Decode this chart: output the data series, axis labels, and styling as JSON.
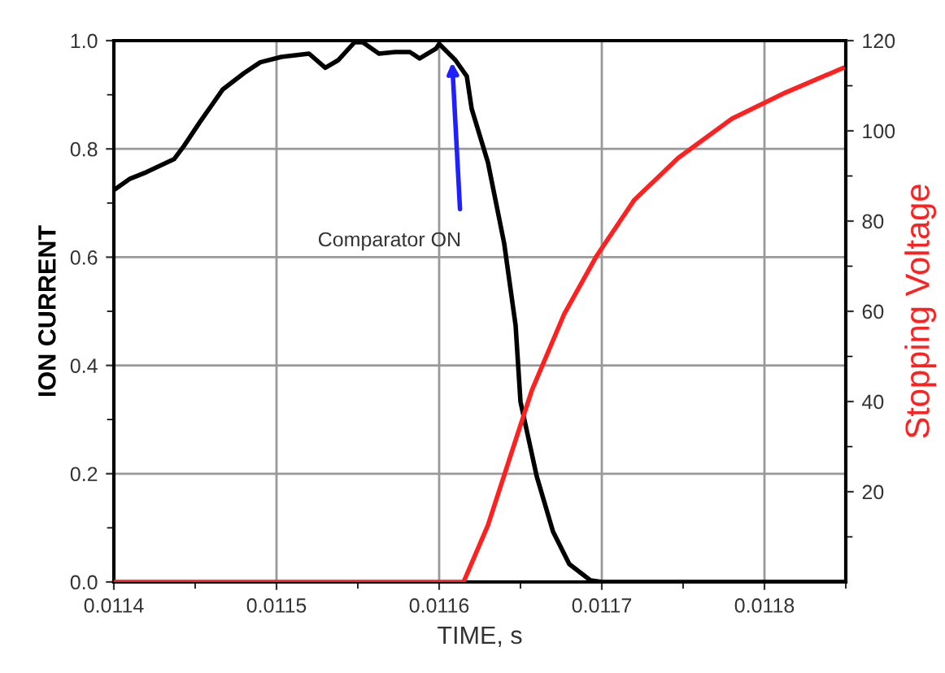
{
  "chart_data": {
    "type": "line",
    "xlabel": "TIME, s",
    "ylabel": "ION CURRENT",
    "y2label": "Stopping Voltage",
    "xlim": [
      0.0114,
      0.01185
    ],
    "xticks": [
      0.0114,
      0.0115,
      0.0116,
      0.0117,
      0.0118
    ],
    "ylim": [
      0,
      1.0
    ],
    "yticks": [
      {
        "value": 0,
        "label": "0.0"
      },
      0.2,
      0.4,
      0.6,
      0.8,
      {
        "value": 1,
        "label": "1.0"
      }
    ],
    "y2lim": [
      0,
      120
    ],
    "y2ticks": [
      20,
      40,
      60,
      80,
      100,
      120
    ],
    "grid": true,
    "series": [
      {
        "color": "#000000",
        "x": [
          0.0114,
          0.0114,
          0.01141,
          0.01142,
          0.011437,
          0.011443,
          0.011453,
          0.011467,
          0.01148,
          0.01149,
          0.011503,
          0.01152,
          0.01153,
          0.011538,
          0.011548,
          0.011553,
          0.011563,
          0.011573,
          0.011582,
          0.011588,
          0.011598,
          0.0116,
          0.01161,
          0.011617,
          0.01162,
          0.01163,
          0.01164,
          0.011647,
          0.01165,
          0.01166,
          0.01167,
          0.01168,
          0.011693,
          0.0117,
          0.01185
        ],
        "values": [
          0.724,
          0.724,
          0.745,
          0.757,
          0.781,
          0.805,
          0.85,
          0.91,
          0.94,
          0.96,
          0.97,
          0.976,
          0.95,
          0.964,
          0.997,
          0.997,
          0.976,
          0.979,
          0.979,
          0.967,
          0.985,
          0.994,
          0.964,
          0.934,
          0.874,
          0.775,
          0.625,
          0.474,
          0.333,
          0.195,
          0.093,
          0.033,
          0.003,
          0.0,
          0.0
        ]
      },
      {
        "color": "#ff2020",
        "axis": "y2",
        "x": [
          0.0114,
          0.011615,
          0.01163,
          0.011643,
          0.011657,
          0.011677,
          0.011697,
          0.01172,
          0.011747,
          0.01178,
          0.011813,
          0.011848
        ],
        "values": [
          0,
          0,
          12.6,
          27,
          42.5,
          59.5,
          72.4,
          84.7,
          94,
          102.7,
          108.5,
          113.9
        ]
      }
    ],
    "annotations": [
      {
        "text": "Comparator ON",
        "x": 0.011608,
        "y": 0.96
      }
    ]
  }
}
